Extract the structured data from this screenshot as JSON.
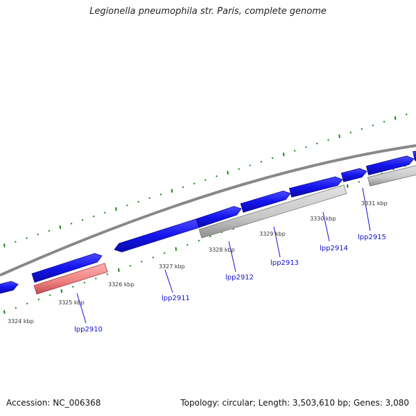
{
  "title": "Legionella pneumophila str. Paris, complete genome",
  "footer": {
    "accession": "Accession: NC_006368",
    "summary": "Topology: circular; Length: 3,503,610 bp; Genes: 3,080"
  },
  "colors": {
    "backbone": "#8c8c8c",
    "forward_gene": "#1414ee",
    "reverse_gene": "#c8c8c8",
    "highlight_gene": "#ee8888",
    "tick": "#118811",
    "gene_label": "#1010cc"
  },
  "scale": {
    "unit": "kbp",
    "ticks": [
      {
        "label": "3324 kbp"
      },
      {
        "label": "3325 kbp"
      },
      {
        "label": "3326 kbp"
      },
      {
        "label": "3327 kbp"
      },
      {
        "label": "3328 kbp"
      },
      {
        "label": "3329 kbp"
      },
      {
        "label": "3330 kbp"
      },
      {
        "label": "3331 kbp"
      }
    ]
  },
  "genes": [
    {
      "name": "lpp2910",
      "label": "lpp2910",
      "strand": "reverse",
      "color": "highlight"
    },
    {
      "name": "lpp2911",
      "label": "lpp2911",
      "strand": "forward",
      "color": "forward"
    },
    {
      "name": "lpp2912",
      "label": "lpp2912",
      "strand": "forward",
      "color": "forward"
    },
    {
      "name": "lpp2913",
      "label": "lpp2913",
      "strand": "forward",
      "color": "forward"
    },
    {
      "name": "lpp2914",
      "label": "lpp2914",
      "strand": "forward",
      "color": "forward"
    },
    {
      "name": "lpp2915",
      "label": "lpp2915",
      "strand": "reverse",
      "color": "reverse"
    }
  ]
}
